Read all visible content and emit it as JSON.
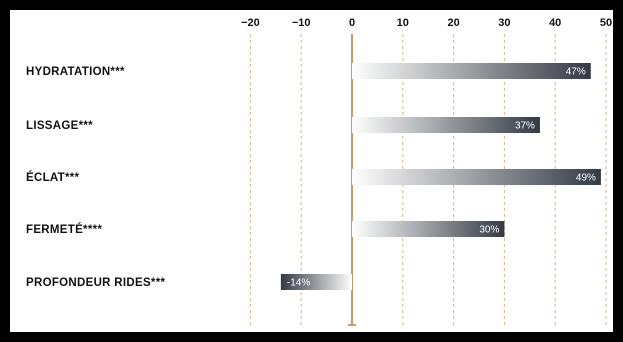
{
  "chart_data": {
    "type": "bar",
    "orientation": "horizontal",
    "categories": [
      "HYDRATATION***",
      "LISSAGE***",
      "ÉCLAT***",
      "FERMETÉ****",
      "PROFONDEUR RIDES***"
    ],
    "values": [
      47,
      37,
      49,
      30,
      -14
    ],
    "value_labels": [
      "47%",
      "37%",
      "49%",
      "30%",
      "-14%"
    ],
    "x_ticks": [
      "-20",
      "-10",
      "0",
      "10",
      "20",
      "30",
      "40",
      "50"
    ],
    "xlim": [
      -20,
      50
    ],
    "tick_position": "top",
    "grid": "vertical dashed",
    "colors": {
      "bar_start": "#ffffff",
      "bar_end": "#333a44",
      "grid": "#d8b48a",
      "zero_line": "#c79a6a"
    }
  }
}
